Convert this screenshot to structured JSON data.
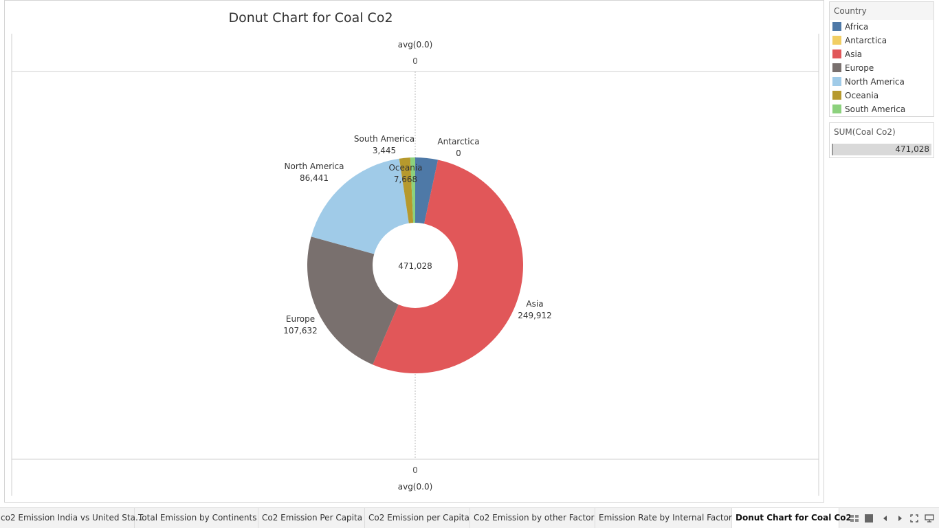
{
  "chart_title": "Donut Chart for Coal Co2",
  "top_axis": {
    "label": "avg(0.0)",
    "tick": "0"
  },
  "bottom_axis": {
    "label": "avg(0.0)",
    "tick": "0"
  },
  "center_label": "471,028",
  "chart_data": {
    "type": "pie",
    "title": "Donut Chart for Coal Co2",
    "donut": true,
    "total": 471028,
    "total_label": "471,028",
    "slices": [
      {
        "name": "Africa",
        "value": 15930,
        "color": "#4e79a7",
        "label": "",
        "value_label": ""
      },
      {
        "name": "Asia",
        "value": 249912,
        "color": "#e15759",
        "label": "Asia",
        "value_label": "249,912"
      },
      {
        "name": "Europe",
        "value": 107632,
        "color": "#79706e",
        "label": "Europe",
        "value_label": "107,632"
      },
      {
        "name": "North America",
        "value": 86441,
        "color": "#a0cbe8",
        "label": "North America",
        "value_label": "86,441"
      },
      {
        "name": "Oceania",
        "value": 7668,
        "color": "#b6992d",
        "label": "Oceania",
        "value_label": "7,668"
      },
      {
        "name": "South America",
        "value": 3445,
        "color": "#8cd17d",
        "label": "South America",
        "value_label": "3,445"
      },
      {
        "name": "Antarctica",
        "value": 0,
        "color": "#f1ce63",
        "label": "Antarctica",
        "value_label": "0"
      }
    ]
  },
  "legend": {
    "title": "Country",
    "items": [
      {
        "label": "Africa",
        "color": "#4e79a7"
      },
      {
        "label": "Antarctica",
        "color": "#f1ce63"
      },
      {
        "label": "Asia",
        "color": "#e15759"
      },
      {
        "label": "Europe",
        "color": "#79706e"
      },
      {
        "label": "North America",
        "color": "#a0cbe8"
      },
      {
        "label": "Oceania",
        "color": "#b6992d"
      },
      {
        "label": "South America",
        "color": "#8cd17d"
      }
    ]
  },
  "sum_panel": {
    "title": "SUM(Coal Co2)",
    "value": "471,028"
  },
  "tabs": [
    {
      "label": "co2 Emission India vs United Sta...",
      "active": false
    },
    {
      "label": "Total Emission by Continents",
      "active": false
    },
    {
      "label": "Co2 Emission Per Capita",
      "active": false
    },
    {
      "label": "Co2 Emission per Capita",
      "active": false
    },
    {
      "label": "Co2 Emission by other Factor",
      "active": false
    },
    {
      "label": "Emission Rate by Internal Factor",
      "active": false
    },
    {
      "label": "Donut Chart for Coal Co2",
      "active": true
    }
  ],
  "nav_icons": [
    "sheet-sorter-icon",
    "filmstrip-icon",
    "previous-sheet-icon",
    "next-sheet-icon",
    "fullscreen-icon",
    "presentation-icon"
  ]
}
